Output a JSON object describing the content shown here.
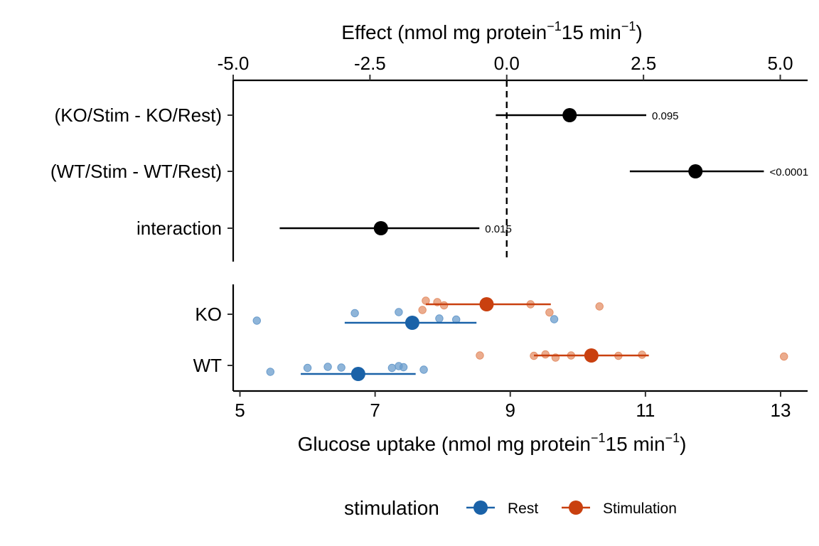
{
  "colors": {
    "rest": "#1a62a8",
    "stimulation": "#c9400f",
    "rest_raw": "#6a9ccc",
    "stimulation_raw": "#e49068",
    "axis": "#000000"
  },
  "chart_data": [
    {
      "type": "scatter",
      "subtype": "forest-plot",
      "xlabel": {
        "main": "Effect (nmol mg protein",
        "sup1": "−1",
        "mid": "15 min",
        "sup2": "−1",
        "end": ")"
      },
      "xlim": [
        -5.0,
        5.5
      ],
      "x_ticks": [
        -5.0,
        -2.5,
        0.0,
        2.5,
        5.0
      ],
      "x_tick_labels": [
        "-5.0",
        "-2.5",
        "0.0",
        "2.5",
        "5.0"
      ],
      "reference_line_x": 0,
      "rows": [
        {
          "label": "(KO/Stim - KO/Rest)",
          "estimate": 1.15,
          "lower": -0.2,
          "upper": 2.55,
          "p_label": "0.095"
        },
        {
          "label": "(WT/Stim - WT/Rest)",
          "estimate": 3.45,
          "lower": 2.25,
          "upper": 4.7,
          "p_label": "<0.0001"
        },
        {
          "label": "interaction",
          "estimate": -2.3,
          "lower": -4.15,
          "upper": -0.5,
          "p_label": "0.015"
        }
      ]
    },
    {
      "type": "scatter",
      "subtype": "dot-and-interval",
      "xlabel": {
        "main": "Glucose uptake (nmol mg protein",
        "sup1": "−1",
        "mid": "15 min",
        "sup2": "−1",
        "end": ")"
      },
      "xlim": [
        4.9,
        13.4
      ],
      "x_ticks": [
        5,
        7,
        9,
        11,
        13
      ],
      "x_tick_labels": [
        "5",
        "7",
        "9",
        "11",
        "13"
      ],
      "categories": [
        "KO",
        "WT"
      ],
      "legend": {
        "title": "stimulation",
        "entries": [
          "Rest",
          "Stimulation"
        ],
        "position": "bottom"
      },
      "series": [
        {
          "name": "Rest",
          "summary": [
            {
              "category": "KO",
              "mean": 7.55,
              "lower": 6.55,
              "upper": 8.5
            },
            {
              "category": "WT",
              "mean": 6.75,
              "lower": 5.9,
              "upper": 7.6
            }
          ],
          "points": [
            {
              "category": "KO",
              "x": 5.25,
              "jitter": -0.18
            },
            {
              "category": "KO",
              "x": 6.7,
              "jitter": 0.03
            },
            {
              "category": "KO",
              "x": 7.35,
              "jitter": 0.06
            },
            {
              "category": "KO",
              "x": 7.95,
              "jitter": -0.12
            },
            {
              "category": "KO",
              "x": 8.2,
              "jitter": -0.15
            },
            {
              "category": "KO",
              "x": 9.65,
              "jitter": -0.14
            },
            {
              "category": "WT",
              "x": 5.45,
              "jitter": -0.18
            },
            {
              "category": "WT",
              "x": 6.0,
              "jitter": -0.07
            },
            {
              "category": "WT",
              "x": 6.3,
              "jitter": -0.04
            },
            {
              "category": "WT",
              "x": 6.5,
              "jitter": -0.06
            },
            {
              "category": "WT",
              "x": 7.25,
              "jitter": -0.07
            },
            {
              "category": "WT",
              "x": 7.35,
              "jitter": -0.02
            },
            {
              "category": "WT",
              "x": 7.42,
              "jitter": -0.05
            },
            {
              "category": "WT",
              "x": 7.72,
              "jitter": -0.12
            }
          ]
        },
        {
          "name": "Stimulation",
          "summary": [
            {
              "category": "KO",
              "mean": 8.65,
              "lower": 7.75,
              "upper": 9.6
            },
            {
              "category": "WT",
              "mean": 10.2,
              "lower": 9.35,
              "upper": 11.05
            }
          ],
          "points": [
            {
              "category": "KO",
              "x": 7.75,
              "jitter": 0.38
            },
            {
              "category": "KO",
              "x": 7.92,
              "jitter": 0.34
            },
            {
              "category": "KO",
              "x": 8.02,
              "jitter": 0.25
            },
            {
              "category": "KO",
              "x": 7.7,
              "jitter": 0.12
            },
            {
              "category": "KO",
              "x": 9.3,
              "jitter": 0.28
            },
            {
              "category": "KO",
              "x": 10.32,
              "jitter": 0.22
            },
            {
              "category": "KO",
              "x": 9.58,
              "jitter": 0.05
            },
            {
              "category": "WT",
              "x": 8.55,
              "jitter": 0.28
            },
            {
              "category": "WT",
              "x": 9.35,
              "jitter": 0.27
            },
            {
              "category": "WT",
              "x": 9.52,
              "jitter": 0.31
            },
            {
              "category": "WT",
              "x": 9.67,
              "jitter": 0.22
            },
            {
              "category": "WT",
              "x": 9.9,
              "jitter": 0.28
            },
            {
              "category": "WT",
              "x": 10.6,
              "jitter": 0.27
            },
            {
              "category": "WT",
              "x": 10.95,
              "jitter": 0.3
            },
            {
              "category": "WT",
              "x": 13.05,
              "jitter": 0.25
            }
          ]
        }
      ]
    }
  ]
}
